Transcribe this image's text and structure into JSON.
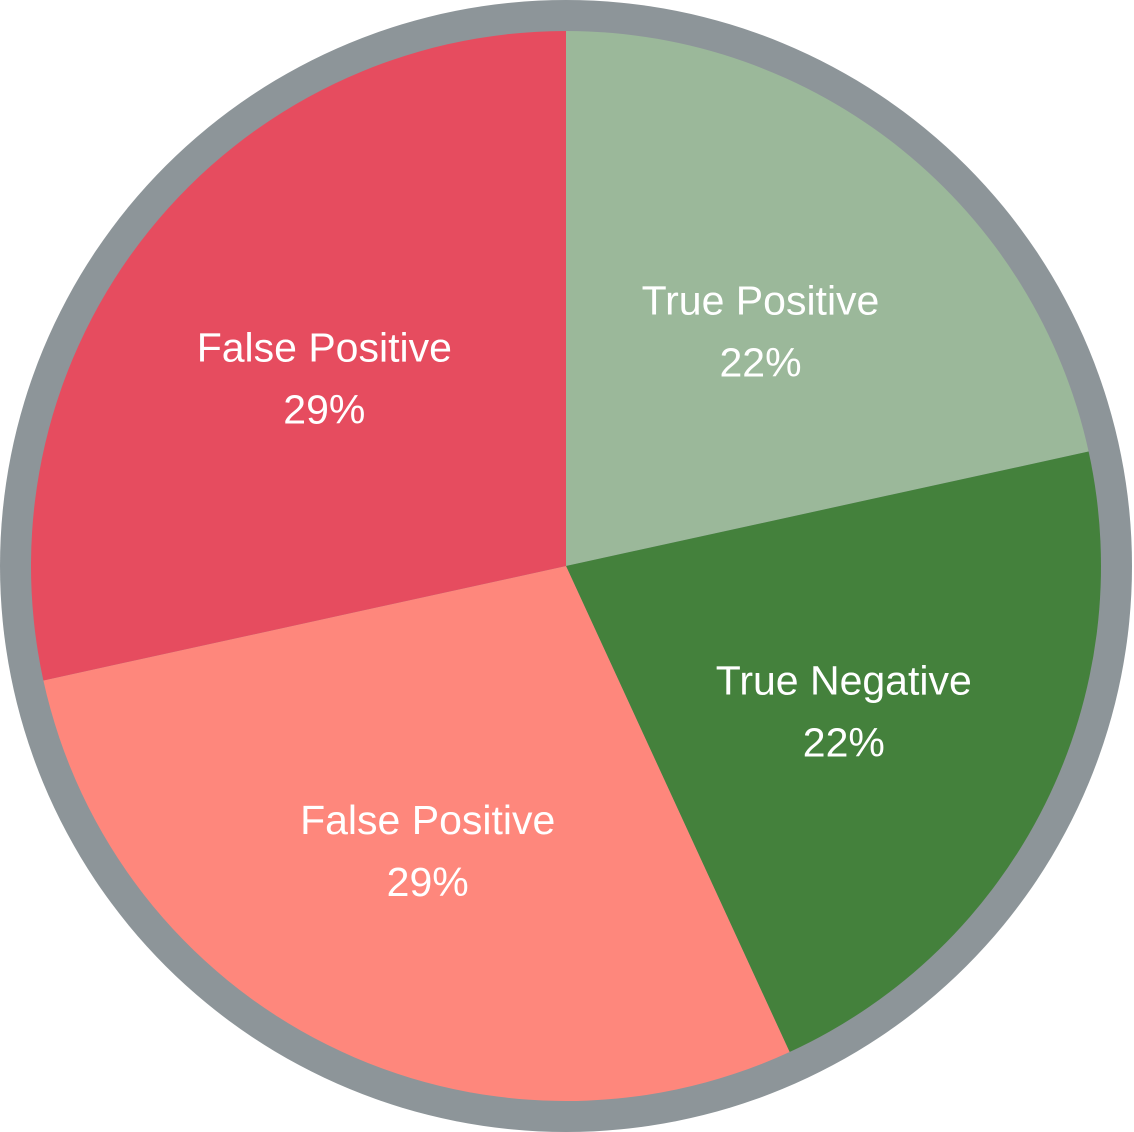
{
  "chart_data": {
    "type": "pie",
    "start_angle_deg": 0,
    "direction": "clockwise",
    "slices": [
      {
        "label": "True Positive",
        "value": 22,
        "display": "22%",
        "color": "#9BB89A"
      },
      {
        "label": "True Negative",
        "value": 22,
        "display": "22%",
        "color": "#44813C"
      },
      {
        "label": "False Positive",
        "value": 29,
        "display": "29%",
        "color": "#FE877C"
      },
      {
        "label": "False Positive",
        "value": 29,
        "display": "29%",
        "color": "#E64C5F"
      }
    ],
    "border_color": "#8D9599"
  }
}
